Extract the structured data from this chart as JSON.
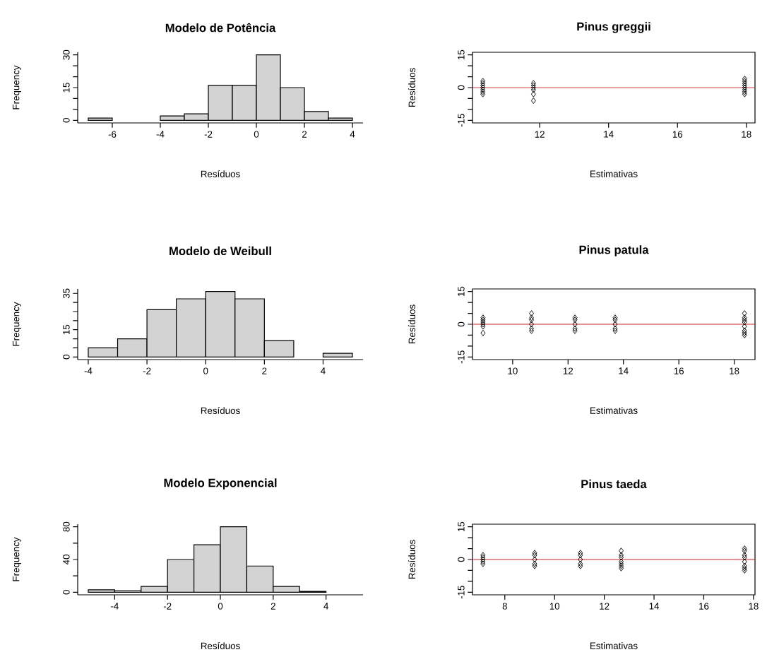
{
  "chart_data": [
    {
      "type": "histogram",
      "title": "Modelo de Potência",
      "xlabel": "Resíduos",
      "ylabel": "Frequency",
      "color": "#d3d3d3",
      "bins": [
        -7,
        -6,
        -5,
        -4,
        -3,
        -2,
        -1,
        0,
        1,
        2,
        3,
        4
      ],
      "values": [
        1,
        0,
        0,
        2,
        3,
        16,
        16,
        30,
        15,
        4,
        1
      ],
      "xlim": [
        -7.44,
        4.44
      ],
      "ylim": [
        -1.2,
        31.2
      ],
      "xticks": [
        -6,
        -4,
        -2,
        0,
        2,
        4
      ],
      "yticks": [
        0,
        {
          "value": 5,
          "label": null
        },
        {
          "value": 10,
          "label": null
        },
        15,
        {
          "value": 20,
          "label": null
        },
        {
          "value": 25,
          "label": null
        },
        30
      ]
    },
    {
      "type": "scatter",
      "title": "Pinus greggii",
      "xlabel": "Estimativas",
      "ylabel": "Resíduos",
      "marker": "diamond",
      "series": [
        {
          "color": "#000000",
          "x": [
            10.35,
            10.35,
            10.35,
            10.35,
            10.35,
            10.35,
            10.35,
            11.82,
            11.82,
            11.82,
            11.82,
            11.82,
            11.82,
            17.95,
            17.95,
            17.95,
            17.95,
            17.95,
            17.95,
            17.95,
            17.95
          ],
          "values": [
            3,
            2,
            1,
            0,
            -1,
            -2,
            -3,
            2,
            1,
            0,
            -1,
            -3,
            -6,
            4,
            3,
            2,
            1,
            0,
            -1,
            -2,
            -3
          ]
        }
      ],
      "ref_lines": [
        {
          "axis": "y",
          "value": 0,
          "color": "#cc2222"
        }
      ],
      "xlim": [
        10.05,
        18.25
      ],
      "ylim": [
        -16.2,
        16.2
      ],
      "xticks": [
        12,
        14,
        16,
        18
      ],
      "yticks": [
        -15,
        {
          "value": -10,
          "label": null
        },
        {
          "value": -5,
          "label": null
        },
        0,
        {
          "value": 5,
          "label": null
        },
        {
          "value": 10,
          "label": null
        },
        15
      ]
    },
    {
      "type": "histogram",
      "title": "Modelo de Weibull",
      "xlabel": "Resíduos",
      "ylabel": "Frequency",
      "color": "#d3d3d3",
      "bins": [
        -4,
        -3,
        -2,
        -1,
        0,
        1,
        2,
        3,
        4,
        5
      ],
      "values": [
        5,
        10,
        26,
        32,
        36,
        32,
        9,
        0,
        2
      ],
      "xlim": [
        -4.36,
        5.36
      ],
      "ylim": [
        -1.44,
        37.44
      ],
      "xticks": [
        -4,
        -2,
        0,
        2,
        4
      ],
      "yticks": [
        0,
        {
          "value": 5,
          "label": null
        },
        {
          "value": 10,
          "label": null
        },
        15,
        {
          "value": 20,
          "label": null
        },
        {
          "value": 25,
          "label": null
        },
        {
          "value": 30,
          "label": null
        },
        35
      ]
    },
    {
      "type": "scatter",
      "title": "Pinus patula",
      "xlabel": "Estimativas",
      "ylabel": "Resíduos",
      "marker": "diamond",
      "series": [
        {
          "color": "#000000",
          "x": [
            8.93,
            8.93,
            8.93,
            8.93,
            8.93,
            8.93,
            10.68,
            10.68,
            10.68,
            10.68,
            10.68,
            10.68,
            12.25,
            12.25,
            12.25,
            12.25,
            12.25,
            13.7,
            13.7,
            13.7,
            13.7,
            13.7,
            18.37,
            18.37,
            18.37,
            18.37,
            18.37,
            18.37,
            18.37,
            18.37
          ],
          "values": [
            3,
            2,
            1,
            0,
            -1,
            -4,
            5,
            3,
            2,
            0,
            -2,
            -3,
            3,
            2,
            0,
            -2,
            -3,
            3,
            2,
            0,
            -2,
            -3,
            5,
            3,
            2,
            1,
            -1,
            -3,
            -4,
            -5
          ]
        }
      ],
      "ref_lines": [
        {
          "axis": "y",
          "value": 0,
          "color": "#cc2222"
        }
      ],
      "xlim": [
        8.55,
        18.75
      ],
      "ylim": [
        -16.2,
        16.2
      ],
      "xticks": [
        10,
        12,
        14,
        16,
        18
      ],
      "yticks": [
        -15,
        {
          "value": -10,
          "label": null
        },
        {
          "value": -5,
          "label": null
        },
        0,
        {
          "value": 5,
          "label": null
        },
        {
          "value": 10,
          "label": null
        },
        15
      ]
    },
    {
      "type": "histogram",
      "title": "Modelo Exponencial",
      "xlabel": "Resíduos",
      "ylabel": "Frequency",
      "color": "#d3d3d3",
      "bins": [
        -5,
        -4,
        -3,
        -2,
        -1,
        0,
        1,
        2,
        3,
        4,
        5
      ],
      "values": [
        3,
        2,
        7,
        40,
        58,
        80,
        32,
        7,
        1,
        0
      ],
      "xlim": [
        -5.4,
        5.4
      ],
      "ylim": [
        -3.2,
        83.2
      ],
      "xticks": [
        -4,
        -2,
        0,
        2,
        4
      ],
      "yticks": [
        0,
        {
          "value": 20,
          "label": null
        },
        40,
        {
          "value": 60,
          "label": null
        },
        80
      ]
    },
    {
      "type": "scatter",
      "title": "Pinus taeda",
      "xlabel": "Estimativas",
      "ylabel": "Resíduos",
      "marker": "diamond",
      "series": [
        {
          "color": "#000000",
          "x": [
            7.12,
            7.12,
            7.12,
            7.12,
            7.12,
            9.2,
            9.2,
            9.2,
            9.2,
            9.2,
            11.04,
            11.04,
            11.04,
            11.04,
            11.04,
            12.68,
            12.68,
            12.68,
            12.68,
            12.68,
            12.68,
            12.68,
            17.64,
            17.64,
            17.64,
            17.64,
            17.64,
            17.64,
            17.64,
            17.64
          ],
          "values": [
            2,
            1,
            0,
            -1,
            -2,
            3,
            2,
            0,
            -2,
            -3,
            3,
            2,
            0,
            -2,
            -3,
            4,
            2,
            1,
            -1,
            -2,
            -3,
            -4,
            5,
            4,
            2,
            1,
            -1,
            -3,
            -4,
            -5
          ]
        }
      ],
      "ref_lines": [
        {
          "axis": "y",
          "value": 0,
          "color": "#cc2222"
        }
      ],
      "xlim": [
        6.7,
        18.06
      ],
      "ylim": [
        -16.2,
        16.2
      ],
      "xticks": [
        8,
        10,
        12,
        14,
        16,
        18
      ],
      "yticks": [
        -15,
        {
          "value": -10,
          "label": null
        },
        {
          "value": -5,
          "label": null
        },
        0,
        {
          "value": 5,
          "label": null
        },
        {
          "value": 10,
          "label": null
        },
        15
      ]
    }
  ]
}
